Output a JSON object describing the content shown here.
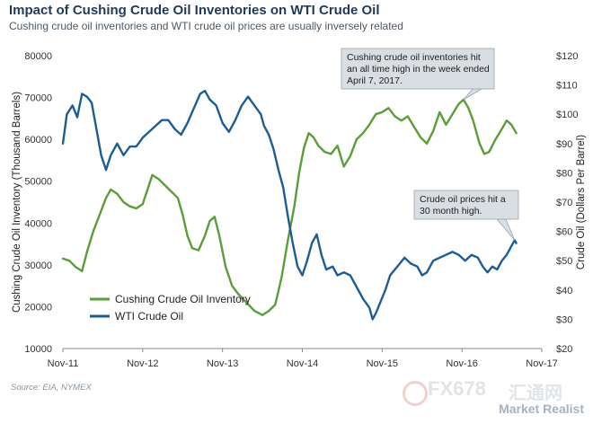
{
  "header": {
    "title": "Impact of Cushing Crude Oil Inventories on WTI Crude Oil",
    "subtitle": "Cushing crude oil inventories and WTI crude oil prices are usually inversely related"
  },
  "footer": {
    "source": "Source: EIA, NYMEX",
    "brand": "Market Realist",
    "watermark_fx": "FX678",
    "watermark_cn": "汇通网"
  },
  "chart_data": {
    "type": "line",
    "x_tick_labels": [
      "Nov-11",
      "Nov-12",
      "Nov-13",
      "Nov-14",
      "Nov-15",
      "Nov-16",
      "Nov-17"
    ],
    "x_range": [
      0,
      6
    ],
    "left_axis": {
      "label": "Cushing Crude Oil Inventory (Thousand Barrels)",
      "range": [
        10000,
        80000
      ],
      "ticks": [
        10000,
        20000,
        30000,
        40000,
        50000,
        60000,
        70000,
        80000
      ],
      "tick_labels": [
        "10000",
        "20000",
        "30000",
        "40000",
        "50000",
        "60000",
        "70000",
        "80000"
      ]
    },
    "right_axis": {
      "label": "Crude Oil (Dollars Per Barrel)",
      "range": [
        20,
        120
      ],
      "ticks": [
        20,
        30,
        40,
        50,
        60,
        70,
        80,
        90,
        100,
        110,
        120
      ],
      "tick_labels": [
        "$20",
        "$30",
        "$40",
        "$50",
        "$60",
        "$70",
        "$80",
        "$90",
        "$100",
        "$110",
        "$120"
      ]
    },
    "grid": false,
    "legend_position": "bottom-left",
    "series": [
      {
        "name": "Cushing Crude Oil Inventory",
        "axis": "left",
        "color": "#5a9e3a",
        "points": [
          [
            0.0,
            31500
          ],
          [
            0.08,
            31000
          ],
          [
            0.16,
            29500
          ],
          [
            0.24,
            28500
          ],
          [
            0.3,
            33000
          ],
          [
            0.38,
            38000
          ],
          [
            0.46,
            42000
          ],
          [
            0.54,
            46000
          ],
          [
            0.6,
            48000
          ],
          [
            0.68,
            47000
          ],
          [
            0.76,
            45000
          ],
          [
            0.84,
            44000
          ],
          [
            0.92,
            43500
          ],
          [
            1.0,
            44500
          ],
          [
            1.06,
            48000
          ],
          [
            1.12,
            51500
          ],
          [
            1.2,
            50500
          ],
          [
            1.28,
            49000
          ],
          [
            1.36,
            47500
          ],
          [
            1.44,
            46000
          ],
          [
            1.5,
            42000
          ],
          [
            1.56,
            37000
          ],
          [
            1.62,
            34000
          ],
          [
            1.7,
            33500
          ],
          [
            1.78,
            37000
          ],
          [
            1.84,
            40500
          ],
          [
            1.9,
            41500
          ],
          [
            1.96,
            37000
          ],
          [
            2.04,
            29500
          ],
          [
            2.12,
            25000
          ],
          [
            2.2,
            23000
          ],
          [
            2.3,
            21000
          ],
          [
            2.4,
            19000
          ],
          [
            2.5,
            18000
          ],
          [
            2.58,
            19000
          ],
          [
            2.66,
            20500
          ],
          [
            2.74,
            27000
          ],
          [
            2.82,
            36000
          ],
          [
            2.9,
            44000
          ],
          [
            2.96,
            52000
          ],
          [
            3.02,
            58000
          ],
          [
            3.08,
            61500
          ],
          [
            3.14,
            60500
          ],
          [
            3.2,
            58500
          ],
          [
            3.28,
            57000
          ],
          [
            3.36,
            56500
          ],
          [
            3.44,
            58500
          ],
          [
            3.52,
            53500
          ],
          [
            3.6,
            56000
          ],
          [
            3.68,
            60000
          ],
          [
            3.76,
            61500
          ],
          [
            3.84,
            63500
          ],
          [
            3.92,
            66000
          ],
          [
            4.0,
            66500
          ],
          [
            4.08,
            67500
          ],
          [
            4.16,
            65500
          ],
          [
            4.24,
            64500
          ],
          [
            4.32,
            65500
          ],
          [
            4.4,
            63000
          ],
          [
            4.48,
            60500
          ],
          [
            4.56,
            59000
          ],
          [
            4.64,
            62000
          ],
          [
            4.72,
            66500
          ],
          [
            4.8,
            63500
          ],
          [
            4.88,
            66000
          ],
          [
            4.96,
            68500
          ],
          [
            5.02,
            69500
          ],
          [
            5.08,
            67500
          ],
          [
            5.14,
            64500
          ],
          [
            5.22,
            59000
          ],
          [
            5.28,
            56500
          ],
          [
            5.34,
            57000
          ],
          [
            5.42,
            60000
          ],
          [
            5.5,
            62500
          ],
          [
            5.56,
            64500
          ],
          [
            5.62,
            63500
          ],
          [
            5.68,
            61500
          ]
        ]
      },
      {
        "name": "WTI Crude Oil",
        "axis": "right",
        "color": "#1d5d95",
        "points": [
          [
            0.0,
            90
          ],
          [
            0.05,
            100
          ],
          [
            0.12,
            103
          ],
          [
            0.18,
            99
          ],
          [
            0.24,
            107
          ],
          [
            0.3,
            106
          ],
          [
            0.36,
            104
          ],
          [
            0.42,
            95
          ],
          [
            0.48,
            86
          ],
          [
            0.54,
            81
          ],
          [
            0.6,
            86
          ],
          [
            0.68,
            90
          ],
          [
            0.76,
            86
          ],
          [
            0.84,
            89
          ],
          [
            0.92,
            89
          ],
          [
            1.0,
            92
          ],
          [
            1.08,
            94
          ],
          [
            1.16,
            96
          ],
          [
            1.24,
            98
          ],
          [
            1.32,
            98
          ],
          [
            1.4,
            95
          ],
          [
            1.48,
            93
          ],
          [
            1.56,
            97
          ],
          [
            1.64,
            102
          ],
          [
            1.72,
            107
          ],
          [
            1.78,
            108
          ],
          [
            1.84,
            105
          ],
          [
            1.92,
            103
          ],
          [
            2.0,
            97
          ],
          [
            2.08,
            94
          ],
          [
            2.16,
            98
          ],
          [
            2.24,
            103
          ],
          [
            2.32,
            106
          ],
          [
            2.4,
            103
          ],
          [
            2.48,
            100
          ],
          [
            2.52,
            96
          ],
          [
            2.58,
            93
          ],
          [
            2.64,
            88
          ],
          [
            2.7,
            81
          ],
          [
            2.76,
            75
          ],
          [
            2.82,
            65
          ],
          [
            2.88,
            56
          ],
          [
            2.94,
            48
          ],
          [
            3.0,
            45
          ],
          [
            3.06,
            50
          ],
          [
            3.12,
            56
          ],
          [
            3.18,
            59
          ],
          [
            3.24,
            52
          ],
          [
            3.3,
            47
          ],
          [
            3.38,
            48
          ],
          [
            3.44,
            45
          ],
          [
            3.52,
            46
          ],
          [
            3.6,
            45
          ],
          [
            3.68,
            41
          ],
          [
            3.76,
            37
          ],
          [
            3.84,
            34
          ],
          [
            3.88,
            30
          ],
          [
            3.92,
            32
          ],
          [
            3.98,
            36
          ],
          [
            4.04,
            40
          ],
          [
            4.1,
            45
          ],
          [
            4.16,
            47
          ],
          [
            4.22,
            49
          ],
          [
            4.28,
            51
          ],
          [
            4.36,
            49
          ],
          [
            4.44,
            48
          ],
          [
            4.5,
            45
          ],
          [
            4.56,
            46
          ],
          [
            4.64,
            50
          ],
          [
            4.72,
            51
          ],
          [
            4.8,
            52
          ],
          [
            4.88,
            53
          ],
          [
            4.96,
            52
          ],
          [
            5.04,
            50
          ],
          [
            5.12,
            52
          ],
          [
            5.2,
            51
          ],
          [
            5.26,
            48
          ],
          [
            5.32,
            46
          ],
          [
            5.38,
            48
          ],
          [
            5.44,
            47
          ],
          [
            5.5,
            50
          ],
          [
            5.56,
            52
          ],
          [
            5.62,
            55
          ],
          [
            5.66,
            57
          ],
          [
            5.68,
            56
          ]
        ]
      }
    ],
    "annotations": [
      {
        "lines": [
          "Cushing crude oil inventories hit",
          "an all time high in the week ended",
          "April 7, 2017."
        ],
        "series": 0,
        "target": [
          5.02,
          69500
        ]
      },
      {
        "lines": [
          "Crude oil prices hit a",
          "30 month high."
        ],
        "series": 1,
        "target": [
          5.66,
          57
        ]
      }
    ]
  }
}
